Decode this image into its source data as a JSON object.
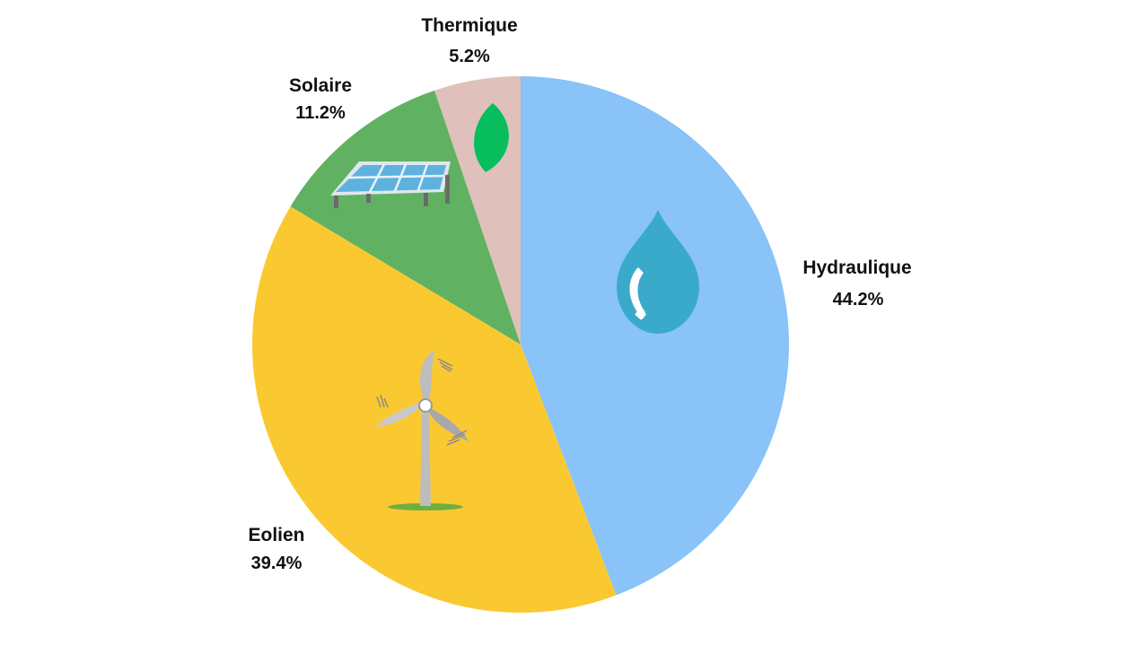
{
  "chart_data": {
    "type": "pie",
    "title": "",
    "slices": [
      {
        "label": "Hydraulique",
        "value": 44.2,
        "display": "44.2%",
        "color": "#89c3f7",
        "icon": "water-drop-icon"
      },
      {
        "label": "Eolien",
        "value": 39.4,
        "display": "39.4%",
        "color": "#fac931",
        "icon": "wind-turbine-icon"
      },
      {
        "label": "Solaire",
        "value": 11.2,
        "display": "11.2%",
        "color": "#60b262",
        "icon": "solar-panel-icon"
      },
      {
        "label": "Thermique",
        "value": 5.2,
        "display": "5.2%",
        "color": "#dfc0ba",
        "icon": "leaf-icon"
      }
    ],
    "start_angle": "12 o'clock",
    "direction": "clockwise",
    "legend": "none",
    "labels_position": "outside"
  }
}
